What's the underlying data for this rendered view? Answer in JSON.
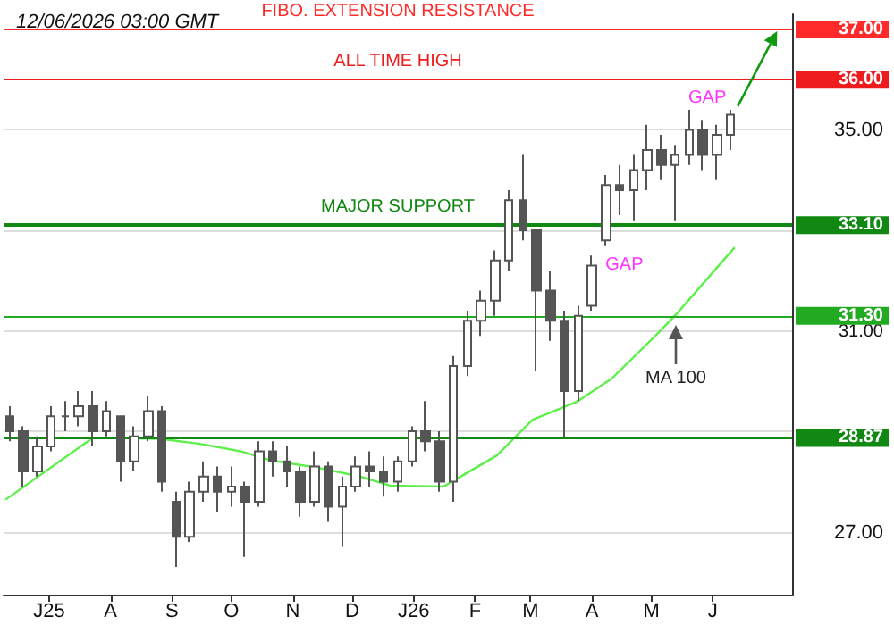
{
  "chart_data": {
    "type": "candlestick",
    "title": "12/06/2026 03:00 GMT",
    "x": [
      "2025-06-11",
      "2025-06-18",
      "2025-06-25",
      "2025-07-02",
      "2025-07-09",
      "2025-07-16",
      "2025-07-23",
      "2025-07-30",
      "2025-08-06",
      "2025-08-13",
      "2025-08-20",
      "2025-08-27",
      "2025-09-03",
      "2025-09-10",
      "2025-09-17",
      "2025-09-24",
      "2025-10-01",
      "2025-10-08",
      "2025-10-15",
      "2025-10-22",
      "2025-10-29",
      "2025-11-05",
      "2025-11-12",
      "2025-11-19",
      "2025-11-26",
      "2025-12-03",
      "2025-12-10",
      "2025-12-17",
      "2025-12-24",
      "2025-12-31",
      "2026-01-07",
      "2026-01-14",
      "2026-01-21",
      "2026-01-28",
      "2026-02-04",
      "2026-02-11",
      "2026-02-18",
      "2026-02-25",
      "2026-03-04",
      "2026-03-11",
      "2026-03-18",
      "2026-03-25",
      "2026-04-01",
      "2026-04-08",
      "2026-04-15",
      "2026-04-22",
      "2026-04-29",
      "2026-05-06",
      "2026-05-13",
      "2026-05-20",
      "2026-05-27",
      "2026-06-03",
      "2026-06-10"
    ],
    "ohlc": [
      [
        29.3,
        29.5,
        28.8,
        29.0
      ],
      [
        29.0,
        29.1,
        27.9,
        28.2
      ],
      [
        28.2,
        28.9,
        28.1,
        28.7
      ],
      [
        28.7,
        29.5,
        28.6,
        29.3
      ],
      [
        29.3,
        29.6,
        29.0,
        29.3
      ],
      [
        29.3,
        29.8,
        29.1,
        29.5
      ],
      [
        29.5,
        29.8,
        28.7,
        29.0
      ],
      [
        29.0,
        29.6,
        28.9,
        29.4
      ],
      [
        29.3,
        29.3,
        28.0,
        28.4
      ],
      [
        28.4,
        29.1,
        28.2,
        28.9
      ],
      [
        28.9,
        29.7,
        28.8,
        29.4
      ],
      [
        29.4,
        29.5,
        27.8,
        28.0
      ],
      [
        27.6,
        27.8,
        26.3,
        26.9
      ],
      [
        26.9,
        28.0,
        26.8,
        27.8
      ],
      [
        27.8,
        28.4,
        27.6,
        28.1
      ],
      [
        28.1,
        28.3,
        27.4,
        27.8
      ],
      [
        27.8,
        28.3,
        27.5,
        27.9
      ],
      [
        27.9,
        28.0,
        26.5,
        27.6
      ],
      [
        27.6,
        28.8,
        27.5,
        28.6
      ],
      [
        28.6,
        28.8,
        28.1,
        28.4
      ],
      [
        28.4,
        28.7,
        27.9,
        28.2
      ],
      [
        28.2,
        28.3,
        27.3,
        27.6
      ],
      [
        27.6,
        28.6,
        27.5,
        28.3
      ],
      [
        28.3,
        28.4,
        27.2,
        27.5
      ],
      [
        27.5,
        28.1,
        26.7,
        27.9
      ],
      [
        27.9,
        28.5,
        27.8,
        28.3
      ],
      [
        28.3,
        28.6,
        27.9,
        28.2
      ],
      [
        28.2,
        28.5,
        27.7,
        28.0
      ],
      [
        28.0,
        28.5,
        27.8,
        28.4
      ],
      [
        28.4,
        29.1,
        28.3,
        29.0
      ],
      [
        29.0,
        29.6,
        28.6,
        28.8
      ],
      [
        28.8,
        29.0,
        27.8,
        28.0
      ],
      [
        28.0,
        30.5,
        27.6,
        30.3
      ],
      [
        30.3,
        31.4,
        30.1,
        31.2
      ],
      [
        31.2,
        31.8,
        30.9,
        31.6
      ],
      [
        31.6,
        32.6,
        31.3,
        32.4
      ],
      [
        32.4,
        33.8,
        32.2,
        33.6
      ],
      [
        33.6,
        34.5,
        32.8,
        33.0
      ],
      [
        33.0,
        33.0,
        30.2,
        31.8
      ],
      [
        31.8,
        32.2,
        30.8,
        31.2
      ],
      [
        31.2,
        31.4,
        28.87,
        29.8
      ],
      [
        29.8,
        31.5,
        29.6,
        31.3
      ],
      [
        31.5,
        32.5,
        31.4,
        32.3
      ],
      [
        32.8,
        34.1,
        32.7,
        33.9
      ],
      [
        33.9,
        34.3,
        33.3,
        33.8
      ],
      [
        33.8,
        34.5,
        33.2,
        34.2
      ],
      [
        34.2,
        35.1,
        33.8,
        34.6
      ],
      [
        34.6,
        34.9,
        34.0,
        34.3
      ],
      [
        34.3,
        34.7,
        33.2,
        34.5
      ],
      [
        34.5,
        35.4,
        34.3,
        35.0
      ],
      [
        35.0,
        35.2,
        34.2,
        34.5
      ],
      [
        34.5,
        35.1,
        34.0,
        34.9
      ],
      [
        34.9,
        35.4,
        34.6,
        35.3
      ]
    ],
    "color": "#555555",
    "series": [
      {
        "type": "line",
        "color": "#5ef04a",
        "x": [
          "2025-06-09",
          "2025-07-23",
          "2025-08-01",
          "2025-08-26",
          "2025-09-15",
          "2025-10-06",
          "2025-10-21",
          "2025-11-13",
          "2025-12-05",
          "2025-12-20",
          "2026-01-16",
          "2026-02-12",
          "2026-03-02",
          "2026-03-24",
          "2026-04-11",
          "2026-05-03",
          "2026-05-14",
          "2026-06-12"
        ],
        "values": [
          27.64,
          28.87,
          28.87,
          28.85,
          28.75,
          28.6,
          28.42,
          28.28,
          28.1,
          27.92,
          27.9,
          28.52,
          29.23,
          29.58,
          30.05,
          30.9,
          31.35,
          32.66
        ]
      }
    ],
    "marker": "none",
    "xlim": [
      "2025-06-08",
      "2026-07-11"
    ],
    "xticks": [
      {
        "value": "2025-07-01",
        "label": "J25"
      },
      {
        "value": "2025-08-01",
        "label": "A"
      },
      {
        "value": "2025-09-01",
        "label": "S"
      },
      {
        "value": "2025-10-01",
        "label": "O"
      },
      {
        "value": "2025-11-01",
        "label": "N"
      },
      {
        "value": "2025-12-01",
        "label": "D"
      },
      {
        "value": "2026-01-01",
        "label": "J26"
      },
      {
        "value": "2026-02-01",
        "label": "F"
      },
      {
        "value": "2026-03-01",
        "label": "M"
      },
      {
        "value": "2026-04-01",
        "label": "A"
      },
      {
        "value": "2026-05-01",
        "label": "M"
      },
      {
        "value": "2026-06-01",
        "label": "J"
      }
    ],
    "ylim": [
      25.75,
      37.3
    ],
    "yticks": [
      {
        "value": 27,
        "label": "27.00"
      },
      {
        "value": 28.87,
        "label": "28.87"
      },
      {
        "value": 29,
        "label": null
      },
      {
        "value": 31,
        "label": "31.00"
      },
      {
        "value": 31.3,
        "label": "31.30"
      },
      {
        "value": 33,
        "label": null
      },
      {
        "value": 33.1,
        "label": "33.10"
      },
      {
        "value": 35,
        "label": "35.00"
      },
      {
        "value": 36,
        "label": "36.00"
      },
      {
        "value": 37,
        "label": "37.00"
      }
    ],
    "grid": "y",
    "ref_lines": [
      {
        "axis": "y",
        "value": 37,
        "label": "FIBO. EXTENSION RESISTANCE",
        "color": "#ff2a2a"
      },
      {
        "axis": "y",
        "value": 36,
        "label": "ALL TIME HIGH",
        "color": "#ee1c1c"
      },
      {
        "axis": "y",
        "value": 33.1,
        "label": "MAJOR SUPPORT",
        "color": "#118811"
      },
      {
        "axis": "y",
        "value": 31.3,
        "label": null,
        "color": "#22aa22"
      },
      {
        "axis": "y",
        "value": 28.87,
        "label": null,
        "color": "#118811"
      }
    ],
    "annotations": [
      {
        "text": "GAP",
        "x": "2026-04-06",
        "y": 32.3
      },
      "GAP",
      "MA 100"
    ]
  }
}
